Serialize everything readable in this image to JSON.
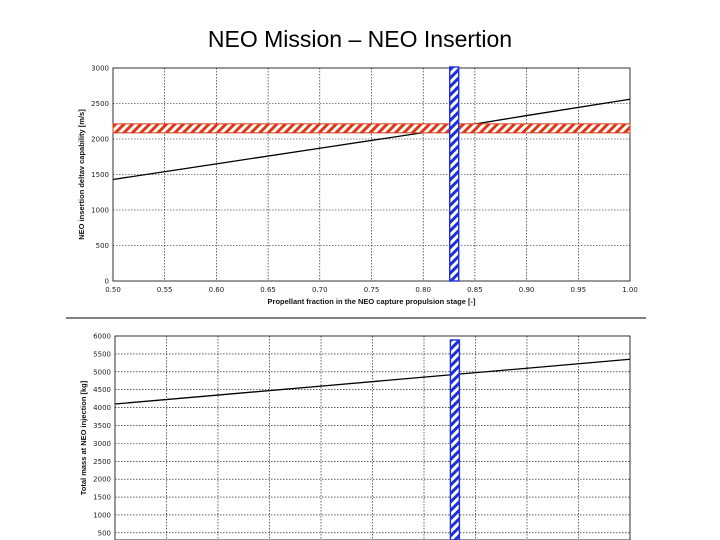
{
  "slide": {
    "title": "NEO Mission – NEO Insertion"
  },
  "chart_data": [
    {
      "type": "line",
      "title": "",
      "xlabel": "Propellant fraction in the NEO capture propulsion stage [-]",
      "ylabel": "NEO insertion deltav capability [m/s]",
      "x_ticks": [
        "0.50",
        "0.55",
        "0.60",
        "0.65",
        "0.70",
        "0.75",
        "0.80",
        "0.85",
        "0.90",
        "0.95",
        "1.00"
      ],
      "y_ticks": [
        "0",
        "500",
        "1000",
        "1500",
        "2000",
        "2500",
        "3000"
      ],
      "xlim": [
        0.5,
        1.0
      ],
      "ylim": [
        0,
        3000
      ],
      "grid": true,
      "series": [
        {
          "name": "deltav capability",
          "color": "#000000",
          "x": [
            0.5,
            0.6,
            0.7,
            0.8,
            0.9,
            1.0
          ],
          "y": [
            1430,
            1650,
            1870,
            2090,
            2330,
            2560
          ]
        }
      ],
      "reference_lines": {
        "horizontal": {
          "y": 2150,
          "color": "#d93a1a"
        },
        "vertical": {
          "x": 0.83,
          "color": "#1a2fd9"
        }
      }
    },
    {
      "type": "line",
      "title": "",
      "xlabel": "",
      "ylabel": "Total mass at NEO injection [kg]",
      "y_ticks": [
        "500",
        "1000",
        "1500",
        "2000",
        "2500",
        "3000",
        "3500",
        "4000",
        "4500",
        "5000",
        "5500",
        "6000"
      ],
      "xlim": [
        0.5,
        1.0
      ],
      "ylim": [
        300,
        6000
      ],
      "grid": true,
      "series": [
        {
          "name": "total mass",
          "color": "#000000",
          "x": [
            0.5,
            0.6,
            0.7,
            0.8,
            0.9,
            1.0
          ],
          "y": [
            4100,
            4350,
            4600,
            4850,
            5100,
            5350
          ]
        }
      ],
      "reference_lines": {
        "vertical": {
          "x": 0.83,
          "color": "#1a2fd9"
        }
      }
    }
  ]
}
